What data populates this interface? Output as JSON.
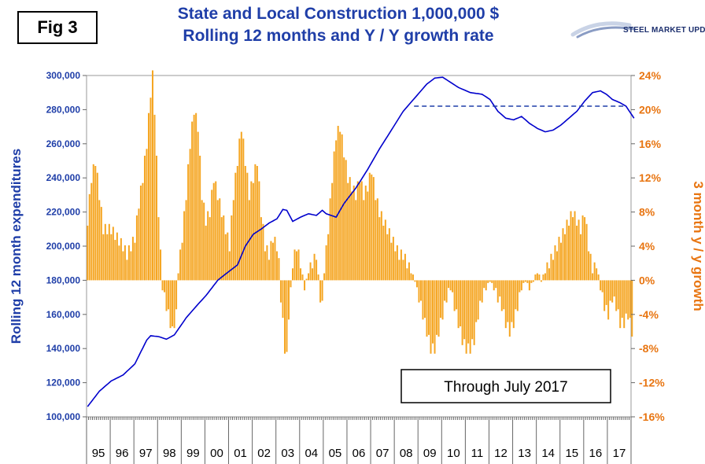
{
  "header": {
    "fig_label": "Fig 3",
    "title_line1": "State and Local Construction 1,000,000 $",
    "title_line2": "Rolling 12 months and Y / Y growth rate",
    "logo_text": "STEEL MARKET UPDATE"
  },
  "colors": {
    "line": "#0000cc",
    "bars": "#f5a623",
    "bar_edge": "#e08a00",
    "left_axis": "#1f3ea8",
    "right_axis": "#e87511",
    "reference_line": "#1f3ea8"
  },
  "chart_data": {
    "type": "bar+line",
    "title": "State and Local Construction 1,000,000 $ Rolling 12 months and Y / Y growth rate",
    "ylabel_left": "Rolling 12 month expenditures",
    "ylabel_right": "3 month y / y growth",
    "ylim_left": [
      100000,
      300000
    ],
    "ylim_right": [
      -16,
      24
    ],
    "left_ticks": [
      "300,000",
      "280,000",
      "260,000",
      "240,000",
      "220,000",
      "200,000",
      "180,000",
      "160,000",
      "140,000",
      "120,000",
      "100,000"
    ],
    "right_ticks": [
      "24%",
      "20%",
      "16%",
      "12%",
      "8%",
      "4%",
      "0%",
      "-4%",
      "-8%",
      "-12%",
      "-16%"
    ],
    "years": [
      "95",
      "96",
      "97",
      "98",
      "99",
      "00",
      "01",
      "02",
      "03",
      "04",
      "05",
      "06",
      "07",
      "08",
      "09",
      "10",
      "11",
      "12",
      "13",
      "14",
      "15",
      "16",
      "17"
    ],
    "months_per_year": 12,
    "annotation": "Through July 2017",
    "reference_level": 282000,
    "reference_from_year_index": 14,
    "line_series": {
      "name": "Rolling 12 month expenditures",
      "keypoints": [
        [
          0,
          106000
        ],
        [
          6,
          115000
        ],
        [
          12,
          121000
        ],
        [
          18,
          124500
        ],
        [
          24,
          131000
        ],
        [
          30,
          145000
        ],
        [
          32,
          147500
        ],
        [
          36,
          147000
        ],
        [
          40,
          145500
        ],
        [
          44,
          148000
        ],
        [
          50,
          158000
        ],
        [
          56,
          166000
        ],
        [
          60,
          171000
        ],
        [
          66,
          180000
        ],
        [
          72,
          185500
        ],
        [
          76,
          189000
        ],
        [
          80,
          200000
        ],
        [
          84,
          207000
        ],
        [
          88,
          210000
        ],
        [
          92,
          213500
        ],
        [
          96,
          216000
        ],
        [
          99,
          221500
        ],
        [
          101,
          221000
        ],
        [
          104,
          214500
        ],
        [
          108,
          217000
        ],
        [
          112,
          219000
        ],
        [
          116,
          218000
        ],
        [
          119,
          221000
        ],
        [
          121,
          219000
        ],
        [
          126,
          217000
        ],
        [
          130,
          225000
        ],
        [
          136,
          234000
        ],
        [
          142,
          245000
        ],
        [
          148,
          257000
        ],
        [
          154,
          268000
        ],
        [
          160,
          279000
        ],
        [
          166,
          287000
        ],
        [
          172,
          295000
        ],
        [
          176,
          298500
        ],
        [
          180,
          299000
        ],
        [
          184,
          296000
        ],
        [
          188,
          293000
        ],
        [
          194,
          290000
        ],
        [
          200,
          289000
        ],
        [
          204,
          286000
        ],
        [
          208,
          279000
        ],
        [
          212,
          275000
        ],
        [
          216,
          274000
        ],
        [
          220,
          276000
        ],
        [
          224,
          272000
        ],
        [
          228,
          269000
        ],
        [
          232,
          267000
        ],
        [
          236,
          268000
        ],
        [
          240,
          271000
        ],
        [
          244,
          275000
        ],
        [
          248,
          279000
        ],
        [
          252,
          285000
        ],
        [
          256,
          290000
        ],
        [
          260,
          291000
        ],
        [
          263,
          289000
        ],
        [
          266,
          286000
        ],
        [
          270,
          284000
        ],
        [
          273,
          282000
        ],
        [
          277,
          275000
        ]
      ]
    },
    "bar_series": {
      "name": "3 month y / y growth",
      "keypoints": [
        [
          0,
          7
        ],
        [
          2,
          12
        ],
        [
          4,
          14
        ],
        [
          6,
          10
        ],
        [
          8,
          6
        ],
        [
          10,
          6
        ],
        [
          12,
          6
        ],
        [
          15,
          5
        ],
        [
          18,
          4
        ],
        [
          20,
          3
        ],
        [
          22,
          4
        ],
        [
          24,
          5
        ],
        [
          26,
          9
        ],
        [
          28,
          12
        ],
        [
          30,
          16
        ],
        [
          32,
          22
        ],
        [
          33,
          24
        ],
        [
          34,
          20
        ],
        [
          36,
          8
        ],
        [
          37,
          3
        ],
        [
          38,
          -1
        ],
        [
          40,
          -3
        ],
        [
          42,
          -5
        ],
        [
          43,
          -6
        ],
        [
          45,
          -4
        ],
        [
          46,
          1
        ],
        [
          48,
          5
        ],
        [
          50,
          10
        ],
        [
          52,
          16
        ],
        [
          54,
          20
        ],
        [
          56,
          18
        ],
        [
          58,
          10
        ],
        [
          60,
          7
        ],
        [
          62,
          8
        ],
        [
          64,
          12
        ],
        [
          66,
          10
        ],
        [
          68,
          8
        ],
        [
          70,
          6
        ],
        [
          72,
          4
        ],
        [
          74,
          10
        ],
        [
          76,
          14
        ],
        [
          78,
          18
        ],
        [
          80,
          14
        ],
        [
          82,
          10
        ],
        [
          84,
          12
        ],
        [
          86,
          14
        ],
        [
          88,
          8
        ],
        [
          90,
          4
        ],
        [
          92,
          3
        ],
        [
          94,
          5
        ],
        [
          96,
          4
        ],
        [
          97,
          2
        ],
        [
          98,
          -2
        ],
        [
          99,
          -5
        ],
        [
          100,
          -8
        ],
        [
          101,
          -9
        ],
        [
          102,
          -4
        ],
        [
          104,
          2
        ],
        [
          106,
          4
        ],
        [
          108,
          2
        ],
        [
          110,
          -1
        ],
        [
          112,
          1
        ],
        [
          114,
          2
        ],
        [
          116,
          3
        ],
        [
          118,
          -2
        ],
        [
          119,
          -3
        ],
        [
          120,
          1
        ],
        [
          122,
          6
        ],
        [
          124,
          12
        ],
        [
          126,
          17
        ],
        [
          128,
          18
        ],
        [
          130,
          15
        ],
        [
          132,
          12
        ],
        [
          134,
          11
        ],
        [
          136,
          10
        ],
        [
          138,
          12
        ],
        [
          140,
          10
        ],
        [
          142,
          11
        ],
        [
          144,
          13
        ],
        [
          146,
          10
        ],
        [
          148,
          8
        ],
        [
          150,
          7
        ],
        [
          152,
          6
        ],
        [
          154,
          5
        ],
        [
          156,
          4
        ],
        [
          158,
          3
        ],
        [
          160,
          3
        ],
        [
          162,
          2
        ],
        [
          164,
          1
        ],
        [
          166,
          0
        ],
        [
          168,
          -2
        ],
        [
          170,
          -4
        ],
        [
          172,
          -6
        ],
        [
          174,
          -8
        ],
        [
          176,
          -8
        ],
        [
          178,
          -6
        ],
        [
          180,
          -4
        ],
        [
          182,
          -2
        ],
        [
          184,
          -1
        ],
        [
          186,
          -3
        ],
        [
          188,
          -5
        ],
        [
          190,
          -7
        ],
        [
          192,
          -8
        ],
        [
          194,
          -8
        ],
        [
          196,
          -7
        ],
        [
          198,
          -4
        ],
        [
          200,
          -2
        ],
        [
          202,
          -1
        ],
        [
          204,
          0
        ],
        [
          206,
          -1
        ],
        [
          208,
          -2
        ],
        [
          210,
          -3
        ],
        [
          212,
          -5
        ],
        [
          214,
          -6
        ],
        [
          216,
          -5
        ],
        [
          218,
          -3
        ],
        [
          220,
          -1
        ],
        [
          222,
          0
        ],
        [
          224,
          -1
        ],
        [
          226,
          0
        ],
        [
          228,
          1
        ],
        [
          230,
          0
        ],
        [
          232,
          1
        ],
        [
          234,
          2
        ],
        [
          236,
          3
        ],
        [
          238,
          4
        ],
        [
          240,
          5
        ],
        [
          242,
          6
        ],
        [
          244,
          7
        ],
        [
          246,
          8
        ],
        [
          248,
          7
        ],
        [
          250,
          6
        ],
        [
          252,
          8
        ],
        [
          254,
          4
        ],
        [
          256,
          1
        ],
        [
          258,
          2
        ],
        [
          260,
          -1
        ],
        [
          262,
          -3
        ],
        [
          264,
          -4
        ],
        [
          266,
          -2
        ],
        [
          268,
          -3
        ],
        [
          270,
          -5
        ],
        [
          272,
          -5
        ],
        [
          274,
          -4
        ],
        [
          276,
          -6
        ]
      ]
    }
  }
}
